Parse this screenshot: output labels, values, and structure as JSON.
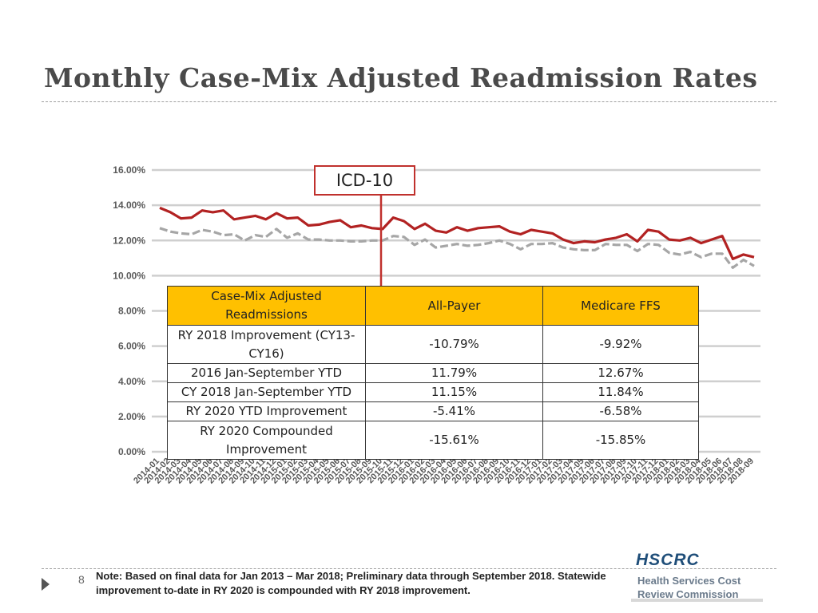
{
  "slide": {
    "title": "Monthly Case-Mix Adjusted Readmission Rates",
    "number": "8",
    "footnote": "Note:  Based on final data for Jan 2013 – Mar 2018; Preliminary data through September 2018. Statewide improvement to-date in RY 2020 is compounded with RY 2018 improvement.",
    "logo": {
      "main": "HSCRC",
      "line1": "Health Services Cost",
      "line2": "Review Commission"
    }
  },
  "annotation": {
    "label": "ICD-10",
    "x_category": "2015-10"
  },
  "chart_data": {
    "type": "line",
    "ylim": [
      0,
      16
    ],
    "yticks": [
      0,
      2,
      4,
      6,
      8,
      10,
      12,
      14,
      16
    ],
    "ytick_labels": [
      "0.00%",
      "2.00%",
      "4.00%",
      "6.00%",
      "8.00%",
      "10.00%",
      "12.00%",
      "14.00%",
      "16.00%"
    ],
    "grid": true,
    "x": [
      "2014-01",
      "2014-02",
      "2014-03",
      "2014-04",
      "2014-05",
      "2014-06",
      "2014-07",
      "2014-08",
      "2014-09",
      "2014-10",
      "2014-11",
      "2014-12",
      "2015-01",
      "2015-02",
      "2015-03",
      "2015-04",
      "2015-05",
      "2015-06",
      "2015-07",
      "2015-08",
      "2015-09",
      "2015-10",
      "2015-11",
      "2015-12",
      "2016-01",
      "2016-02",
      "2016-03",
      "2016-04",
      "2016-05",
      "2016-06",
      "2016-07",
      "2016-08",
      "2016-09",
      "2016-10",
      "2016-11",
      "2016-12",
      "2017-01",
      "2017-02",
      "2017-03",
      "2017-04",
      "2017-05",
      "2017-06",
      "2017-07",
      "2017-08",
      "2017-09",
      "2017-10",
      "2017-11",
      "2017-12",
      "2018-01",
      "2018-02",
      "2018-03",
      "2018-04",
      "2018-05",
      "2018-06",
      "2018-07",
      "2018-08",
      "2018-09"
    ],
    "series": [
      {
        "color": "#b22222",
        "style": "solid",
        "values": [
          13.85,
          13.6,
          13.25,
          13.3,
          13.7,
          13.6,
          13.7,
          13.2,
          13.3,
          13.4,
          13.2,
          13.55,
          13.25,
          13.3,
          12.85,
          12.9,
          13.05,
          13.15,
          12.75,
          12.85,
          12.7,
          12.65,
          13.3,
          13.1,
          12.65,
          12.95,
          12.55,
          12.45,
          12.75,
          12.55,
          12.7,
          12.75,
          12.8,
          12.5,
          12.35,
          12.6,
          12.5,
          12.4,
          12.05,
          11.85,
          11.95,
          11.9,
          12.05,
          12.15,
          12.35,
          11.95,
          12.6,
          12.5,
          12.05,
          12.0,
          12.15,
          11.85,
          12.05,
          12.25,
          10.95,
          11.2,
          11.05
        ]
      },
      {
        "color": "#a6a6a6",
        "style": "dashed",
        "values": [
          12.7,
          12.5,
          12.4,
          12.35,
          12.6,
          12.5,
          12.3,
          12.35,
          12.0,
          12.3,
          12.2,
          12.65,
          12.15,
          12.4,
          12.05,
          12.05,
          12.0,
          12.0,
          11.95,
          11.95,
          12.0,
          12.0,
          12.25,
          12.2,
          11.75,
          12.05,
          11.6,
          11.7,
          11.8,
          11.7,
          11.75,
          11.85,
          12.0,
          11.8,
          11.5,
          11.8,
          11.8,
          11.85,
          11.6,
          11.5,
          11.45,
          11.45,
          11.8,
          11.75,
          11.75,
          11.4,
          11.8,
          11.75,
          11.3,
          11.2,
          11.35,
          11.05,
          11.25,
          11.25,
          10.45,
          10.9,
          10.55
        ]
      }
    ]
  },
  "table": {
    "headers": [
      "Case-Mix Adjusted Readmissions",
      "All-Payer",
      "Medicare FFS"
    ],
    "rows": [
      [
        "RY 2018 Improvement (CY13-CY16)",
        "-10.79%",
        "-9.92%"
      ],
      [
        "2016 Jan-September YTD",
        "11.79%",
        "12.67%"
      ],
      [
        "CY 2018 Jan-September YTD",
        "11.15%",
        "11.84%"
      ],
      [
        "RY 2020 YTD Improvement",
        "-5.41%",
        "-6.58%"
      ],
      [
        "RY 2020 Compounded Improvement",
        "-15.61%",
        "-15.85%"
      ]
    ]
  }
}
